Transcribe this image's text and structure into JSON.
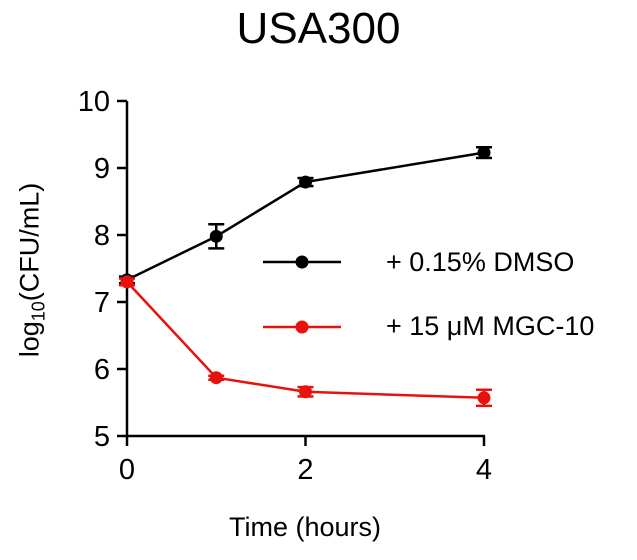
{
  "chart_data": {
    "type": "line",
    "title": "USA300",
    "xlabel": "Time (hours)",
    "ylabel_base": "log",
    "ylabel_sub": "10",
    "ylabel_rest": "(CFU/mL)",
    "xlim": [
      0,
      4
    ],
    "ylim": [
      5,
      10
    ],
    "xticks": [
      0,
      2,
      4
    ],
    "yticks": [
      5,
      6,
      7,
      8,
      9,
      10
    ],
    "grid": false,
    "legend_position": "right",
    "series": [
      {
        "name": "+ 0.15% DMSO",
        "color": "#000000",
        "x": [
          0,
          1,
          2,
          4
        ],
        "y": [
          7.33,
          7.98,
          8.79,
          9.23
        ],
        "err": [
          0.05,
          0.18,
          0.06,
          0.08
        ]
      },
      {
        "name": "+ 15 μM MGC-10",
        "color": "#e8120c",
        "x": [
          0,
          1,
          2,
          4
        ],
        "y": [
          7.3,
          5.87,
          5.66,
          5.57
        ],
        "err": [
          0.05,
          0.03,
          0.07,
          0.12
        ]
      }
    ]
  }
}
